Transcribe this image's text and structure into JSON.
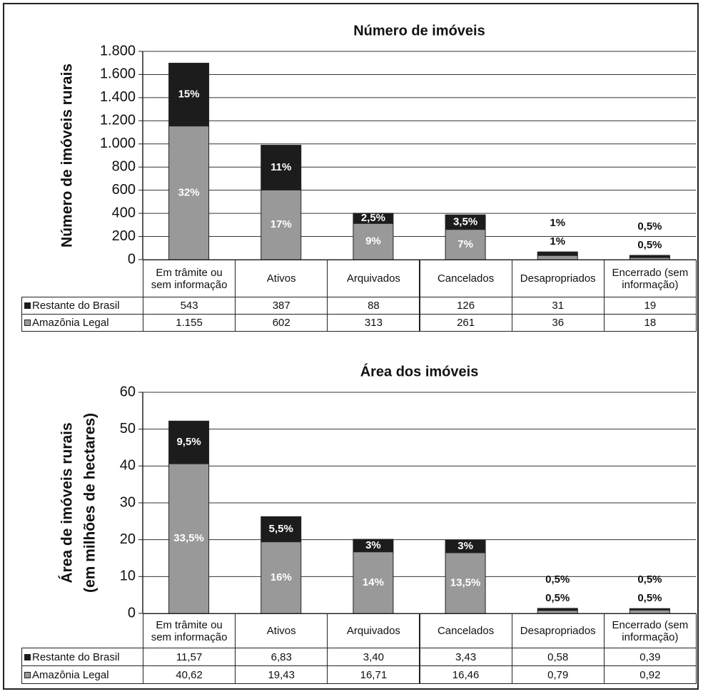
{
  "chart_data": [
    {
      "type": "bar",
      "stacked": true,
      "grid": true,
      "title": "Número de imóveis",
      "ylabel": [
        "Número de imóveis rurais"
      ],
      "categories": [
        "Em trâmite ou sem informação",
        "Ativos",
        "Arquivados",
        "Cancelados",
        "Desapropriados",
        "Encerrado (sem informação)"
      ],
      "ylim": [
        0,
        1800
      ],
      "yticks": [
        0,
        200,
        400,
        600,
        800,
        {
          "value": 1000,
          "label": "1.000"
        },
        {
          "value": 1200,
          "label": "1.200"
        },
        {
          "value": 1400,
          "label": "1.400"
        },
        {
          "value": 1600,
          "label": "1.600"
        },
        {
          "value": 1800,
          "label": "1.800"
        }
      ],
      "series": [
        {
          "name": "Restante do Brasil",
          "color": "#1c1c1c",
          "values": [
            543,
            387,
            88,
            126,
            31,
            19
          ],
          "percent_labels": [
            "15%",
            "11%",
            "2,5%",
            "3,5%",
            "1%",
            "0,5%"
          ]
        },
        {
          "name": "Amazônia Legal",
          "color": "#999999",
          "values": [
            1155,
            602,
            313,
            261,
            36,
            18
          ],
          "value_labels": [
            "1.155",
            "602",
            "313",
            "261",
            "36",
            "18"
          ],
          "percent_labels": [
            "32%",
            "17%",
            "9%",
            "7%",
            "1%",
            "0,5%"
          ]
        }
      ]
    },
    {
      "type": "bar",
      "stacked": true,
      "grid": true,
      "title": "Área dos imóveis",
      "ylabel": [
        "Área de imóveis rurais",
        "(em milhões de hectares)"
      ],
      "categories": [
        "Em trâmite ou sem informação",
        "Ativos",
        "Arquivados",
        "Cancelados",
        "Desapropriados",
        "Encerrado (sem informação)"
      ],
      "ylim": [
        0,
        60
      ],
      "yticks": [
        0,
        10,
        20,
        30,
        40,
        50,
        60
      ],
      "series": [
        {
          "name": "Restante do Brasil",
          "color": "#1c1c1c",
          "values": [
            11.57,
            6.83,
            3.4,
            3.43,
            0.58,
            0.39
          ],
          "value_labels": [
            "11,57",
            "6,83",
            "3,40",
            "3,43",
            "0,58",
            "0,39"
          ],
          "percent_labels": [
            "9,5%",
            "5,5%",
            "3%",
            "3%",
            "0,5%",
            "0,5%"
          ]
        },
        {
          "name": "Amazônia Legal",
          "color": "#999999",
          "values": [
            40.62,
            19.43,
            16.71,
            16.46,
            0.79,
            0.92
          ],
          "value_labels": [
            "40,62",
            "19,43",
            "16,71",
            "16,46",
            "0,79",
            "0,92"
          ],
          "percent_labels": [
            "33,5%",
            "16%",
            "14%",
            "13,5%",
            "0,5%",
            "0,5%"
          ]
        }
      ]
    }
  ]
}
